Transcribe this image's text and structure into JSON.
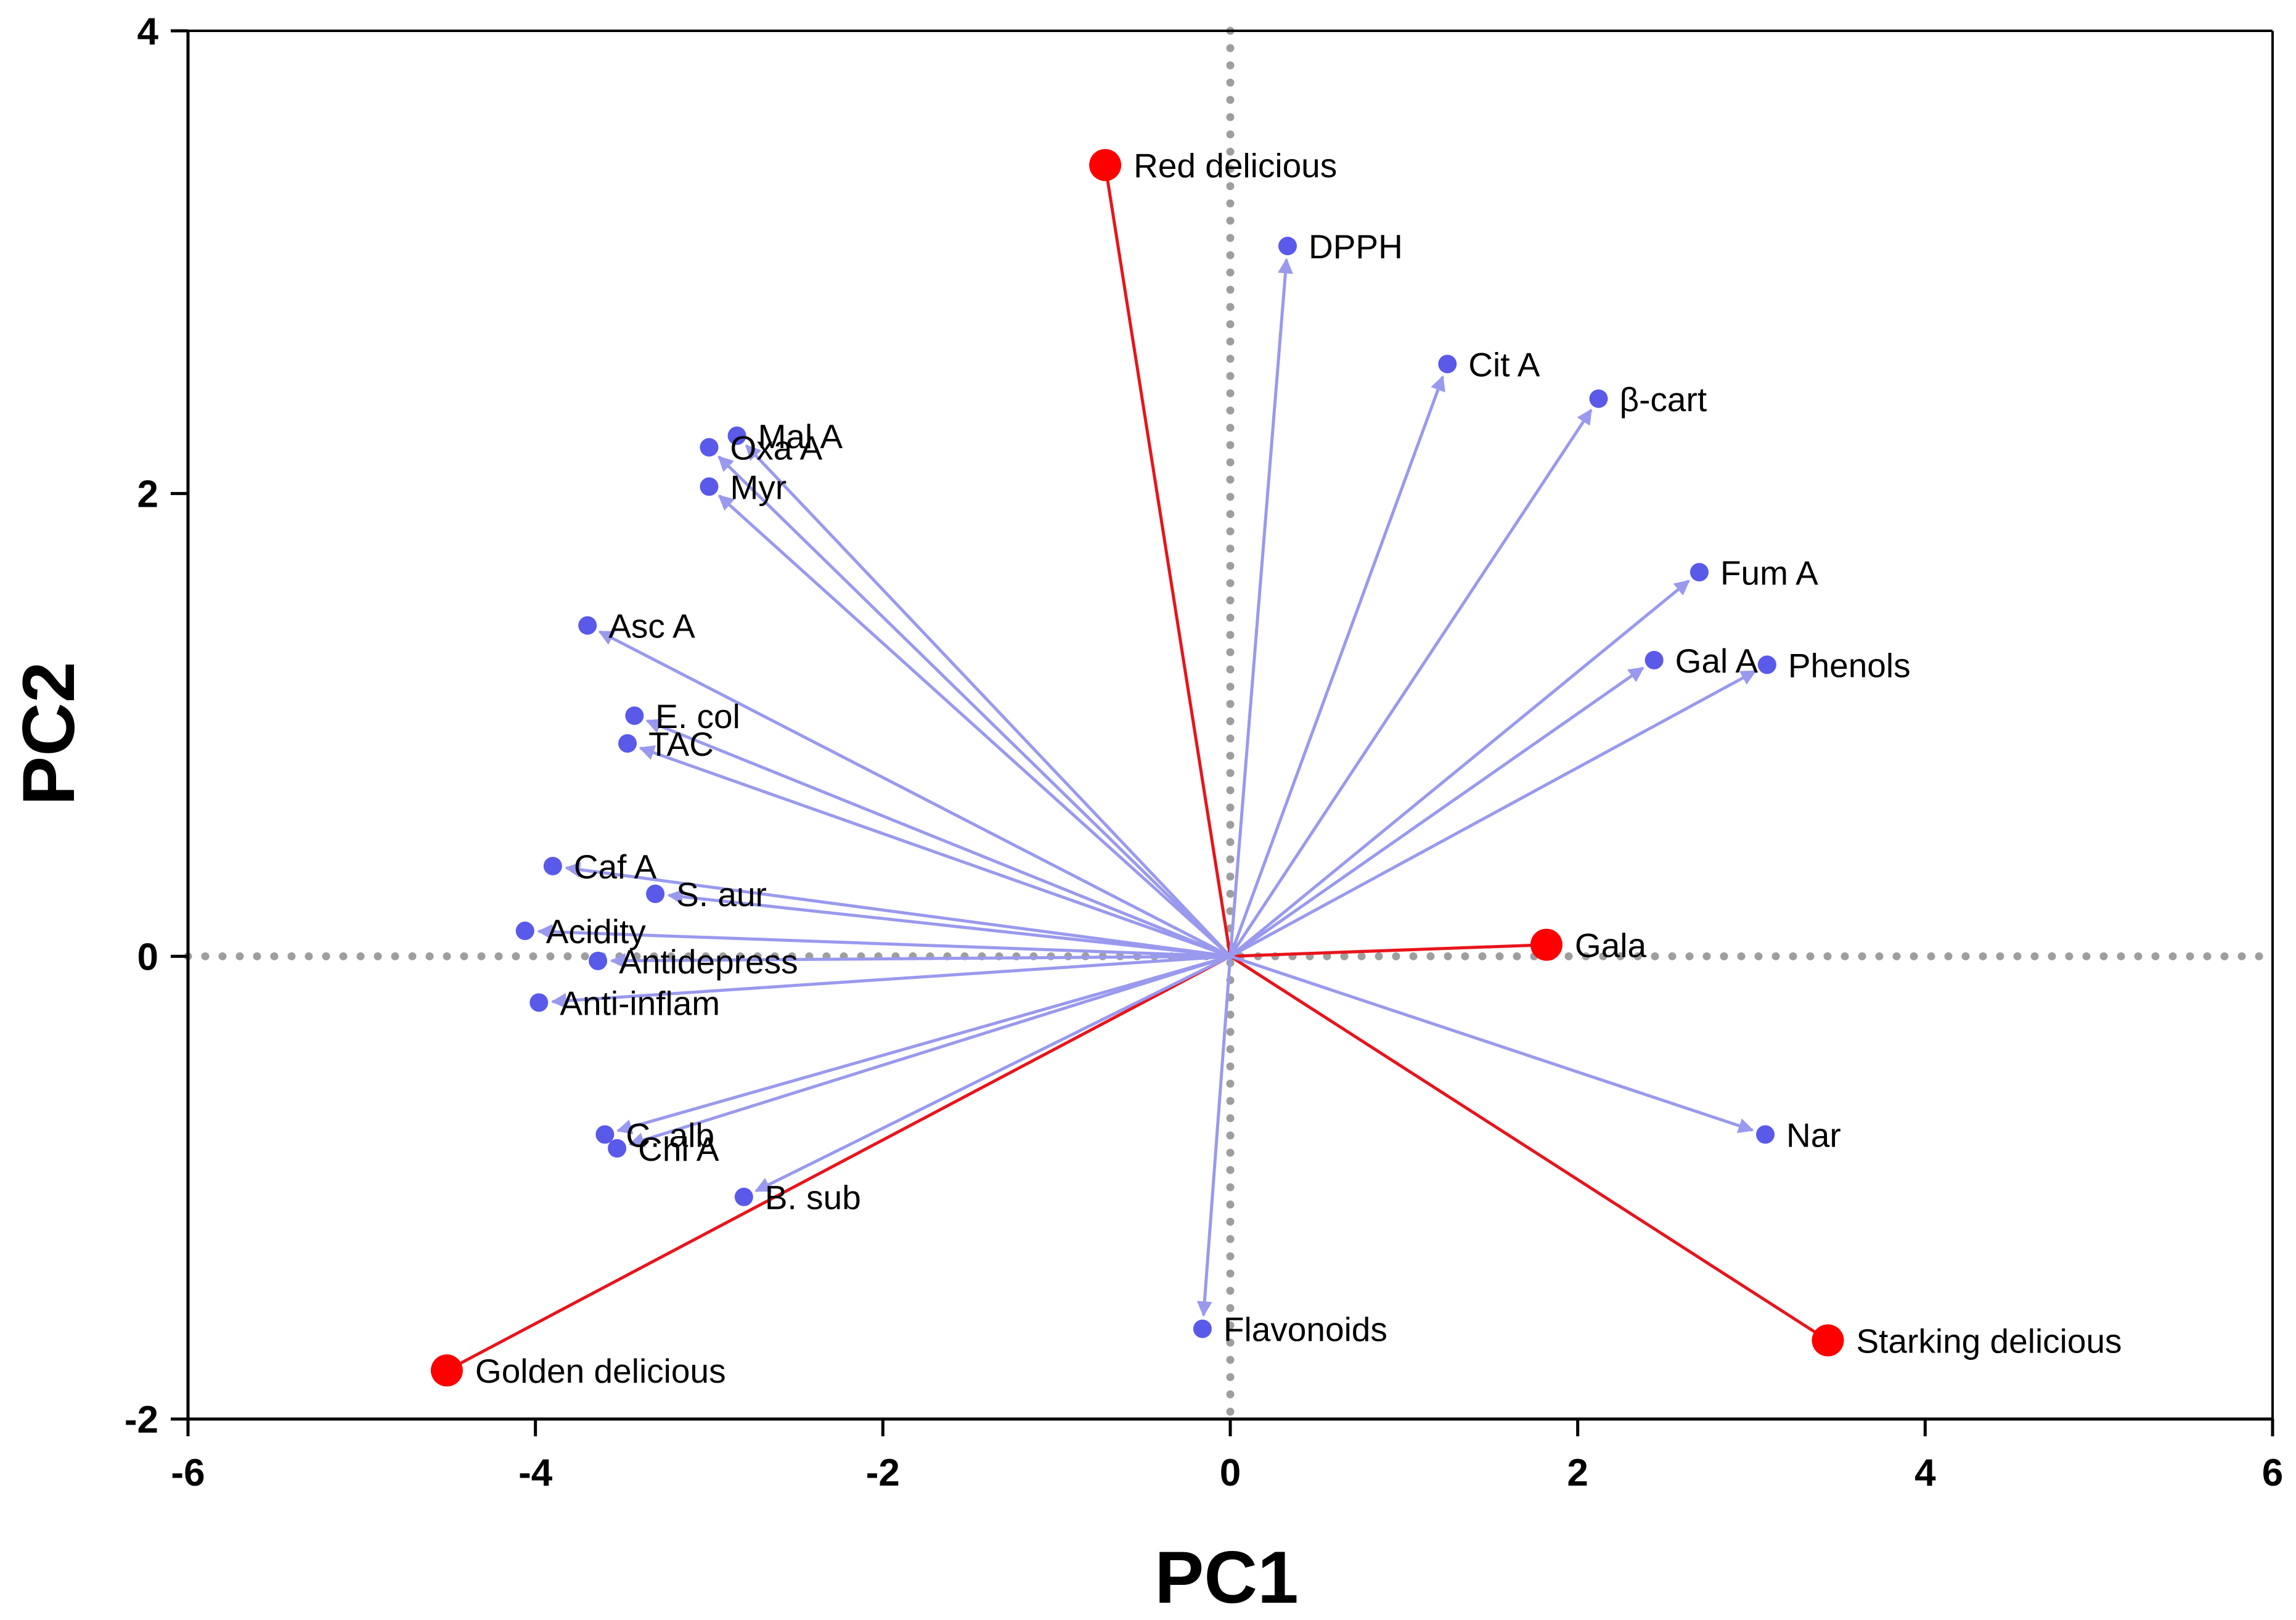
{
  "chart_data": {
    "type": "scatter",
    "subtype": "pca-biplot",
    "title": "",
    "xlabel": "PC1",
    "ylabel": "PC2",
    "xlim": [
      -6,
      6
    ],
    "ylim": [
      -2,
      4
    ],
    "xticks": [
      -6,
      -4,
      -2,
      0,
      2,
      4,
      6
    ],
    "yticks": [
      -2,
      0,
      2,
      4
    ],
    "grid": false,
    "zero_lines": "dotted",
    "colors": {
      "loading": "#5959ea",
      "loading_arrow": "#9999ee",
      "score": "#ff0000",
      "score_line": "#e8141b",
      "zero_line": "#9e9e9e",
      "axis": "#000000"
    },
    "loadings": [
      {
        "name": "DPPH",
        "x": 0.33,
        "y": 3.07
      },
      {
        "name": "Cit A",
        "x": 1.25,
        "y": 2.56
      },
      {
        "name": "β-cart",
        "x": 2.12,
        "y": 2.41
      },
      {
        "name": "Fum  A",
        "x": 2.7,
        "y": 1.66
      },
      {
        "name": "Gal A",
        "x": 2.44,
        "y": 1.28
      },
      {
        "name": "Phenols",
        "x": 3.09,
        "y": 1.26
      },
      {
        "name": "Mal A",
        "x": -2.84,
        "y": 2.25
      },
      {
        "name": "Oxa A",
        "x": -3.0,
        "y": 2.2
      },
      {
        "name": "Myr",
        "x": -3.0,
        "y": 2.03
      },
      {
        "name": "Asc A",
        "x": -3.7,
        "y": 1.43
      },
      {
        "name": "E. col",
        "x": -3.43,
        "y": 1.04
      },
      {
        "name": "TAC",
        "x": -3.47,
        "y": 0.92
      },
      {
        "name": "Caf A",
        "x": -3.9,
        "y": 0.39
      },
      {
        "name": "S. aur",
        "x": -3.31,
        "y": 0.27
      },
      {
        "name": "Acidity",
        "x": -4.06,
        "y": 0.11
      },
      {
        "name": "Antidepress",
        "x": -3.64,
        "y": -0.02
      },
      {
        "name": "Anti-inflam",
        "x": -3.98,
        "y": -0.2
      },
      {
        "name": "C. alb",
        "x": -3.6,
        "y": -0.77
      },
      {
        "name": "Chl A",
        "x": -3.53,
        "y": -0.83
      },
      {
        "name": "B. sub",
        "x": -2.8,
        "y": -1.04
      },
      {
        "name": "Nar",
        "x": 3.08,
        "y": -0.77
      },
      {
        "name": "Flavonoids",
        "x": -0.16,
        "y": -1.61
      }
    ],
    "scores": [
      {
        "name": "Red delicious",
        "x": -0.72,
        "y": 3.42
      },
      {
        "name": "Gala",
        "x": 1.82,
        "y": 0.05
      },
      {
        "name": "Starking delicious",
        "x": 3.44,
        "y": -1.66
      },
      {
        "name": "Golden delicious",
        "x": -4.51,
        "y": -1.79
      }
    ]
  }
}
